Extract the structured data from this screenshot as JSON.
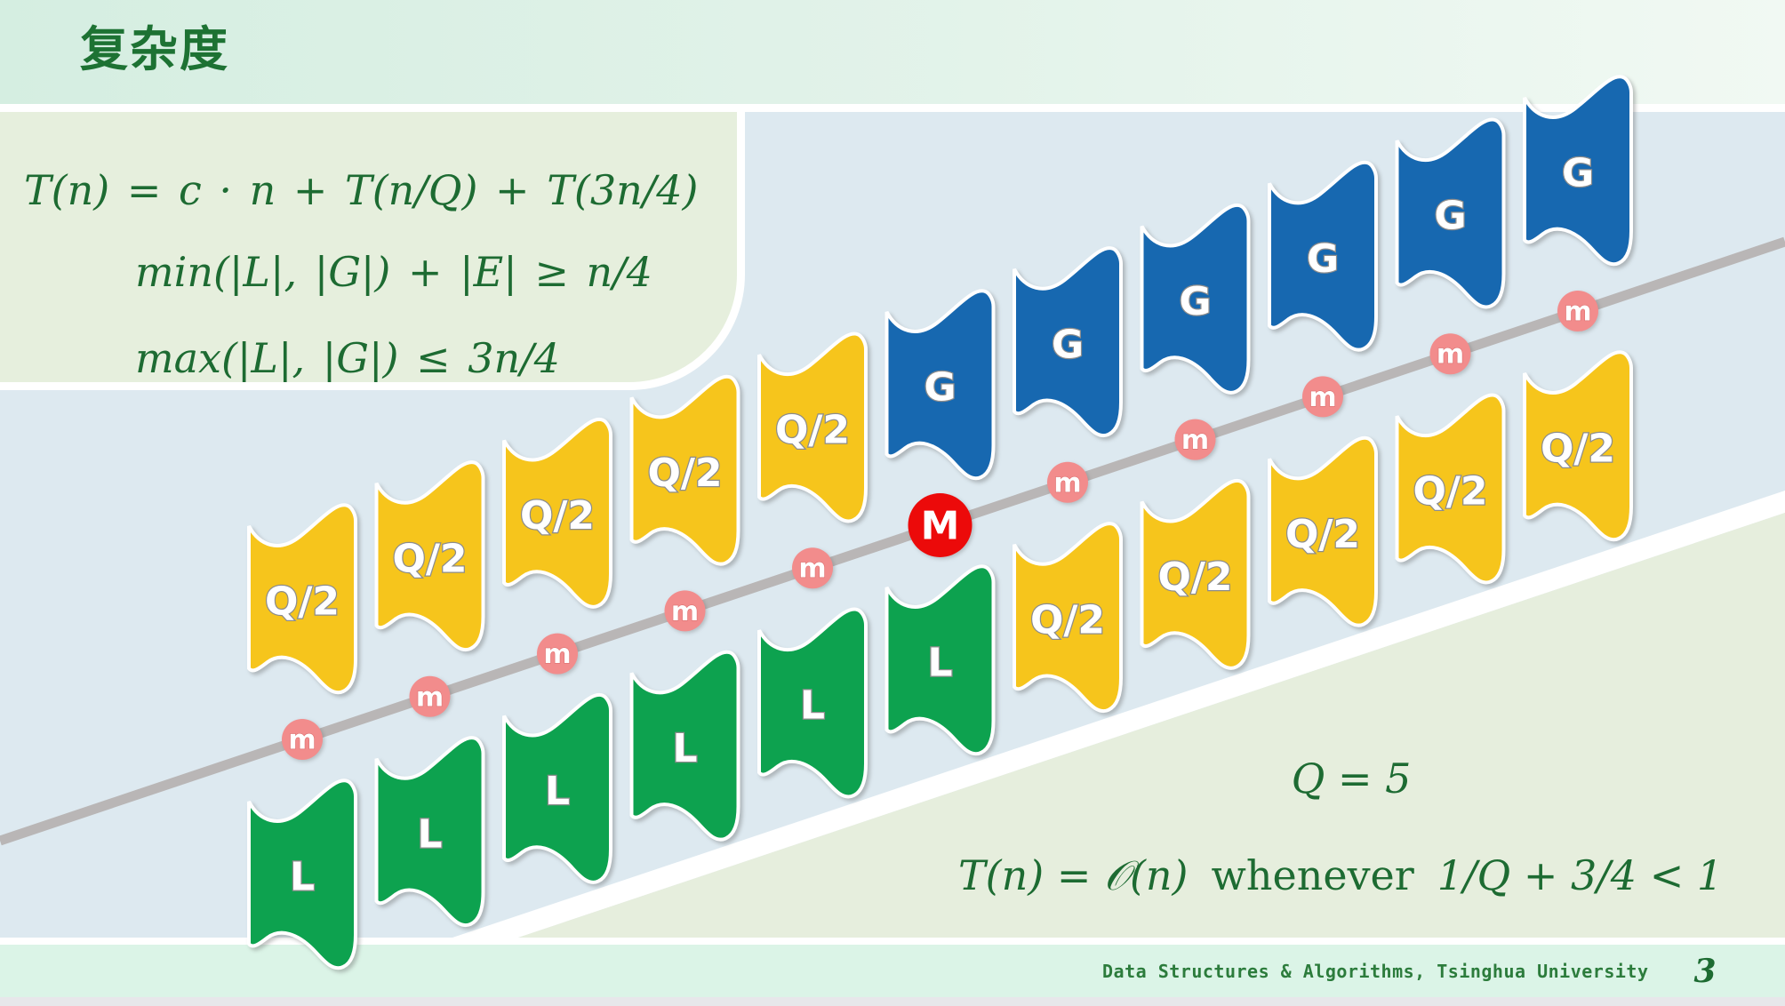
{
  "slide": {
    "title": "复杂度",
    "footer": "Data Structures & Algorithms, Tsinghua University",
    "page_number": "3"
  },
  "formula_box": {
    "line1": "T(n) = c · n + T(n/Q) + T(3n/4)",
    "line2": "min(|L|, |G|) + |E| ≥ n/4",
    "line3": "max(|L|, |G|) ≤ 3n/4"
  },
  "conclusion": {
    "q_value": "Q = 5",
    "lhs": "T(n) = 𝒪(n)",
    "connector": "whenever",
    "rhs": "1/Q + 3/4 < 1"
  },
  "colors": {
    "yellow": "#f6c51c",
    "blue": "#1768b0",
    "green": "#0da24f",
    "marker_small": "#f28c8c",
    "marker_small_stroke": "#dd6f6f",
    "marker_big": "#ec0a0a",
    "line_gray": "#b9b6b6",
    "label_outline": "#8c8c8c",
    "wedge_sage": "#e6eedd",
    "accent_text_green": "#1d6b32"
  },
  "diagram": {
    "columns": [
      {
        "top": {
          "label": "Q/2",
          "color": "yellow"
        },
        "bottom": {
          "label": "L",
          "color": "green"
        },
        "marker": {
          "label": "m",
          "type": "column-median"
        }
      },
      {
        "top": {
          "label": "Q/2",
          "color": "yellow"
        },
        "bottom": {
          "label": "L",
          "color": "green"
        },
        "marker": {
          "label": "m",
          "type": "column-median"
        }
      },
      {
        "top": {
          "label": "Q/2",
          "color": "yellow"
        },
        "bottom": {
          "label": "L",
          "color": "green"
        },
        "marker": {
          "label": "m",
          "type": "column-median"
        }
      },
      {
        "top": {
          "label": "Q/2",
          "color": "yellow"
        },
        "bottom": {
          "label": "L",
          "color": "green"
        },
        "marker": {
          "label": "m",
          "type": "column-median"
        }
      },
      {
        "top": {
          "label": "Q/2",
          "color": "yellow"
        },
        "bottom": {
          "label": "L",
          "color": "green"
        },
        "marker": {
          "label": "m",
          "type": "column-median"
        }
      },
      {
        "top": {
          "label": "G",
          "color": "blue"
        },
        "bottom": {
          "label": "L",
          "color": "green"
        },
        "marker": {
          "label": "M",
          "type": "median-of-medians"
        }
      },
      {
        "top": {
          "label": "G",
          "color": "blue"
        },
        "bottom": {
          "label": "Q/2",
          "color": "yellow"
        },
        "marker": {
          "label": "m",
          "type": "column-median"
        }
      },
      {
        "top": {
          "label": "G",
          "color": "blue"
        },
        "bottom": {
          "label": "Q/2",
          "color": "yellow"
        },
        "marker": {
          "label": "m",
          "type": "column-median"
        }
      },
      {
        "top": {
          "label": "G",
          "color": "blue"
        },
        "bottom": {
          "label": "Q/2",
          "color": "yellow"
        },
        "marker": {
          "label": "m",
          "type": "column-median"
        }
      },
      {
        "top": {
          "label": "G",
          "color": "blue"
        },
        "bottom": {
          "label": "Q/2",
          "color": "yellow"
        },
        "marker": {
          "label": "m",
          "type": "column-median"
        }
      },
      {
        "top": {
          "label": "G",
          "color": "blue"
        },
        "bottom": {
          "label": "Q/2",
          "color": "yellow"
        },
        "marker": {
          "label": "m",
          "type": "column-median"
        }
      }
    ]
  }
}
